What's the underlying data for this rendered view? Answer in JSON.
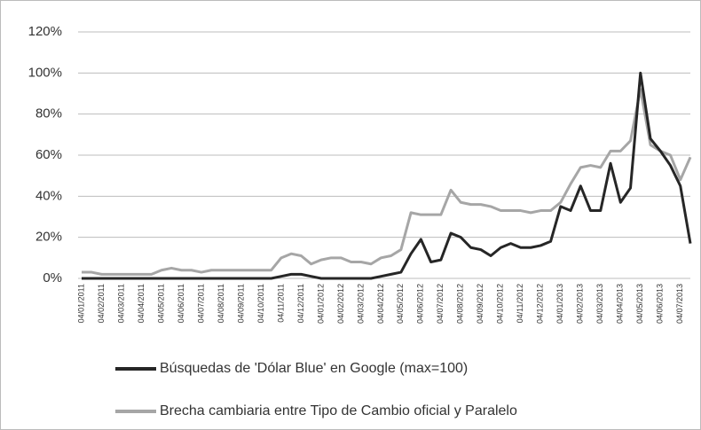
{
  "chart_data": {
    "type": "line",
    "categories": [
      "04/01/2011",
      null,
      "04/02/2011",
      null,
      "04/03/2011",
      null,
      "04/04/2011",
      null,
      "04/05/2011",
      null,
      "04/06/2011",
      null,
      "04/07/2011",
      null,
      "04/08/2011",
      null,
      "04/09/2011",
      null,
      "04/10/2011",
      null,
      "04/11/2011",
      null,
      "04/12/2011",
      null,
      "04/01/2012",
      null,
      "04/02/2012",
      null,
      "04/03/2012",
      null,
      "04/04/2012",
      null,
      "04/05/2012",
      null,
      "04/06/2012",
      null,
      "04/07/2012",
      null,
      "04/08/2012",
      null,
      "04/09/2012",
      null,
      "04/10/2012",
      null,
      "04/11/2012",
      null,
      "04/12/2012",
      null,
      "04/01/2013",
      null,
      "04/02/2013",
      null,
      "04/03/2013",
      null,
      "04/04/2013",
      null,
      "04/05/2013",
      null,
      "04/06/2013",
      null,
      "04/07/2013",
      null
    ],
    "series": [
      {
        "name": "Búsquedas de 'Dólar Blue' en Google (max=100)",
        "color": "#262626",
        "values": [
          0,
          0,
          0,
          0,
          0,
          0,
          0,
          0,
          0,
          0,
          0,
          0,
          0,
          0,
          0,
          0,
          0,
          0,
          0,
          0,
          1,
          2,
          2,
          1,
          0,
          0,
          0,
          0,
          0,
          0,
          1,
          2,
          3,
          12,
          19,
          8,
          9,
          22,
          20,
          15,
          14,
          11,
          15,
          17,
          15,
          15,
          16,
          18,
          35,
          33,
          45,
          33,
          33,
          56,
          37,
          44,
          100,
          68,
          62,
          55,
          45,
          17
        ]
      },
      {
        "name": "Brecha cambiaria entre Tipo de Cambio oficial y Paralelo",
        "color": "#a6a6a6",
        "values": [
          3,
          3,
          2,
          2,
          2,
          2,
          2,
          2,
          4,
          5,
          4,
          4,
          3,
          4,
          4,
          4,
          4,
          4,
          4,
          4,
          10,
          12,
          11,
          7,
          9,
          10,
          10,
          8,
          8,
          7,
          10,
          11,
          14,
          32,
          31,
          31,
          31,
          43,
          37,
          36,
          36,
          35,
          33,
          33,
          33,
          32,
          33,
          33,
          37,
          46,
          54,
          55,
          54,
          62,
          62,
          67,
          92,
          65,
          62,
          60,
          48,
          59
        ]
      }
    ],
    "ylim": [
      0,
      120
    ],
    "yticks": [
      {
        "value": 0,
        "label": "0%"
      },
      {
        "value": 20,
        "label": "20%"
      },
      {
        "value": 40,
        "label": "40%"
      },
      {
        "value": 60,
        "label": "60%"
      },
      {
        "value": 80,
        "label": "80%"
      },
      {
        "value": 100,
        "label": "100%"
      },
      {
        "value": 120,
        "label": "120%"
      }
    ],
    "grid": true,
    "legend": "bottom"
  }
}
